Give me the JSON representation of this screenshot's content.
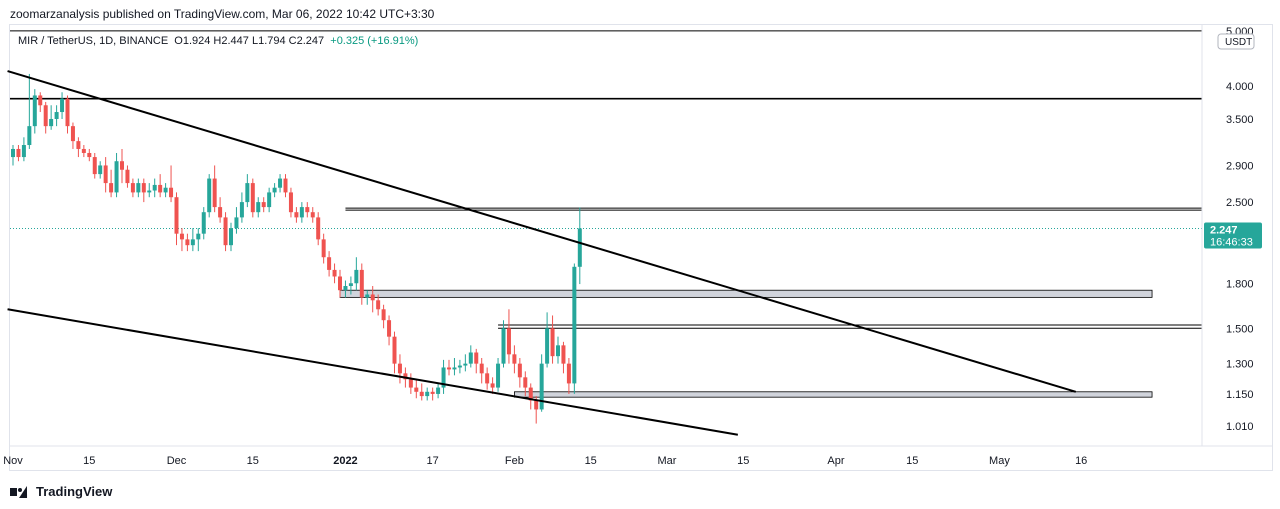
{
  "header": {
    "publisher": "zoomarzanalysis published on TradingView.com, Mar 06, 2022 10:42 UTC+3:30",
    "symbol_line": "MIR / TetherUS, 1D, BINANCE",
    "ohlc": "O1.924  H2.447  L1.794  C2.247",
    "change": "+0.325 (+16.91%)"
  },
  "footer": {
    "brand": "TradingView"
  },
  "colors": {
    "up": "#26a69a",
    "down": "#ef5350",
    "price_tag": "#26a69a",
    "zone": "#d1d4dc",
    "line": "#000000"
  },
  "chart_data": {
    "type": "candlestick",
    "title": "MIR / TetherUS, 1D, BINANCE",
    "y_scale": "log",
    "y_unit": "USDT",
    "y_ticks": [
      5.0,
      4.0,
      3.5,
      2.9,
      2.5,
      1.8,
      1.5,
      1.3,
      1.15,
      1.01
    ],
    "y_tick_labels": [
      "5.000",
      "4.000",
      "3.500",
      "2.900",
      "2.500",
      "1.800",
      "1.500",
      "1.300",
      "1.150",
      "1.010"
    ],
    "x_ticks": [
      {
        "label": "Nov",
        "date": "2021-11-01",
        "bold": false
      },
      {
        "label": "15",
        "date": "2021-11-15",
        "bold": false
      },
      {
        "label": "Dec",
        "date": "2021-12-01",
        "bold": false
      },
      {
        "label": "15",
        "date": "2021-12-15",
        "bold": false
      },
      {
        "label": "2022",
        "date": "2022-01-01",
        "bold": true
      },
      {
        "label": "17",
        "date": "2022-01-17",
        "bold": false
      },
      {
        "label": "Feb",
        "date": "2022-02-01",
        "bold": false
      },
      {
        "label": "15",
        "date": "2022-02-15",
        "bold": false
      },
      {
        "label": "Mar",
        "date": "2022-03-01",
        "bold": false
      },
      {
        "label": "15",
        "date": "2022-03-15",
        "bold": false
      },
      {
        "label": "Apr",
        "date": "2022-04-01",
        "bold": false
      },
      {
        "label": "15",
        "date": "2022-04-15",
        "bold": false
      },
      {
        "label": "May",
        "date": "2022-05-01",
        "bold": false
      },
      {
        "label": "16",
        "date": "2022-05-16",
        "bold": false
      }
    ],
    "first_date": "2021-11-01",
    "candles": [
      [
        3.0,
        3.1,
        2.9,
        3.15
      ],
      [
        3.1,
        3.0,
        2.95,
        3.15
      ],
      [
        3.0,
        3.15,
        2.95,
        3.25
      ],
      [
        3.15,
        3.4,
        3.1,
        4.2
      ],
      [
        3.4,
        3.85,
        3.3,
        3.95
      ],
      [
        3.85,
        3.7,
        3.6,
        3.9
      ],
      [
        3.7,
        3.4,
        3.3,
        3.75
      ],
      [
        3.4,
        3.5,
        3.35,
        3.7
      ],
      [
        3.5,
        3.6,
        3.4,
        3.7
      ],
      [
        3.6,
        3.8,
        3.5,
        3.9
      ],
      [
        3.8,
        3.4,
        3.3,
        3.85
      ],
      [
        3.4,
        3.2,
        3.1,
        3.45
      ],
      [
        3.2,
        3.1,
        3.0,
        3.25
      ],
      [
        3.1,
        3.05,
        3.0,
        3.15
      ],
      [
        3.05,
        3.0,
        2.95,
        3.1
      ],
      [
        3.0,
        2.8,
        2.75,
        3.05
      ],
      [
        2.8,
        2.9,
        2.75,
        2.95
      ],
      [
        2.9,
        2.7,
        2.6,
        3.0
      ],
      [
        2.7,
        2.6,
        2.55,
        2.85
      ],
      [
        2.6,
        2.95,
        2.55,
        3.05
      ],
      [
        2.95,
        2.85,
        2.7,
        3.1
      ],
      [
        2.85,
        2.7,
        2.65,
        2.9
      ],
      [
        2.7,
        2.6,
        2.55,
        2.75
      ],
      [
        2.6,
        2.7,
        2.55,
        2.75
      ],
      [
        2.7,
        2.6,
        2.5,
        2.75
      ],
      [
        2.6,
        2.62,
        2.55,
        2.7
      ],
      [
        2.62,
        2.68,
        2.55,
        2.75
      ],
      [
        2.68,
        2.6,
        2.55,
        2.8
      ],
      [
        2.6,
        2.65,
        2.55,
        2.7
      ],
      [
        2.65,
        2.55,
        2.5,
        2.9
      ],
      [
        2.55,
        2.2,
        2.1,
        2.6
      ],
      [
        2.2,
        2.15,
        2.05,
        2.25
      ],
      [
        2.15,
        2.1,
        2.05,
        2.2
      ],
      [
        2.1,
        2.15,
        2.05,
        2.25
      ],
      [
        2.15,
        2.2,
        2.05,
        2.25
      ],
      [
        2.2,
        2.4,
        2.15,
        2.45
      ],
      [
        2.4,
        2.75,
        2.35,
        2.8
      ],
      [
        2.75,
        2.45,
        2.4,
        2.9
      ],
      [
        2.45,
        2.35,
        2.3,
        2.55
      ],
      [
        2.35,
        2.1,
        2.05,
        2.4
      ],
      [
        2.1,
        2.25,
        2.05,
        2.3
      ],
      [
        2.25,
        2.35,
        2.2,
        2.45
      ],
      [
        2.35,
        2.5,
        2.3,
        2.6
      ],
      [
        2.5,
        2.7,
        2.45,
        2.8
      ],
      [
        2.7,
        2.4,
        2.35,
        2.75
      ],
      [
        2.4,
        2.5,
        2.35,
        2.55
      ],
      [
        2.5,
        2.45,
        2.4,
        2.55
      ],
      [
        2.45,
        2.6,
        2.4,
        2.65
      ],
      [
        2.6,
        2.65,
        2.55,
        2.7
      ],
      [
        2.65,
        2.75,
        2.6,
        2.8
      ],
      [
        2.75,
        2.6,
        2.55,
        2.8
      ],
      [
        2.6,
        2.4,
        2.35,
        2.65
      ],
      [
        2.4,
        2.35,
        2.3,
        2.45
      ],
      [
        2.35,
        2.45,
        2.3,
        2.5
      ],
      [
        2.45,
        2.4,
        2.35,
        2.5
      ],
      [
        2.4,
        2.35,
        2.3,
        2.45
      ],
      [
        2.35,
        2.15,
        2.1,
        2.4
      ],
      [
        2.15,
        2.0,
        1.95,
        2.2
      ],
      [
        2.0,
        1.9,
        1.85,
        2.05
      ],
      [
        1.9,
        1.85,
        1.8,
        1.95
      ],
      [
        1.85,
        1.75,
        1.7,
        1.9
      ],
      [
        1.75,
        1.78,
        1.7,
        1.82
      ],
      [
        1.78,
        1.8,
        1.72,
        1.85
      ],
      [
        1.8,
        1.9,
        1.75,
        2.0
      ],
      [
        1.9,
        1.7,
        1.65,
        1.95
      ],
      [
        1.7,
        1.72,
        1.65,
        1.75
      ],
      [
        1.72,
        1.68,
        1.6,
        1.78
      ],
      [
        1.68,
        1.62,
        1.58,
        1.72
      ],
      [
        1.62,
        1.55,
        1.5,
        1.65
      ],
      [
        1.55,
        1.45,
        1.4,
        1.58
      ],
      [
        1.45,
        1.3,
        1.25,
        1.48
      ],
      [
        1.3,
        1.25,
        1.2,
        1.35
      ],
      [
        1.25,
        1.22,
        1.18,
        1.28
      ],
      [
        1.22,
        1.18,
        1.15,
        1.25
      ],
      [
        1.18,
        1.16,
        1.13,
        1.22
      ],
      [
        1.16,
        1.14,
        1.12,
        1.2
      ],
      [
        1.14,
        1.16,
        1.12,
        1.18
      ],
      [
        1.16,
        1.15,
        1.12,
        1.18
      ],
      [
        1.15,
        1.18,
        1.13,
        1.2
      ],
      [
        1.18,
        1.28,
        1.15,
        1.32
      ],
      [
        1.28,
        1.27,
        1.24,
        1.32
      ],
      [
        1.27,
        1.28,
        1.24,
        1.33
      ],
      [
        1.28,
        1.29,
        1.25,
        1.32
      ],
      [
        1.29,
        1.3,
        1.26,
        1.35
      ],
      [
        1.3,
        1.36,
        1.28,
        1.4
      ],
      [
        1.36,
        1.3,
        1.25,
        1.38
      ],
      [
        1.3,
        1.25,
        1.2,
        1.33
      ],
      [
        1.25,
        1.2,
        1.17,
        1.28
      ],
      [
        1.2,
        1.18,
        1.15,
        1.23
      ],
      [
        1.18,
        1.3,
        1.16,
        1.33
      ],
      [
        1.3,
        1.5,
        1.28,
        1.55
      ],
      [
        1.5,
        1.35,
        1.3,
        1.62
      ],
      [
        1.35,
        1.3,
        1.25,
        1.4
      ],
      [
        1.3,
        1.23,
        1.18,
        1.33
      ],
      [
        1.23,
        1.18,
        1.14,
        1.26
      ],
      [
        1.18,
        1.12,
        1.08,
        1.2
      ],
      [
        1.12,
        1.08,
        1.02,
        1.14
      ],
      [
        1.08,
        1.3,
        1.07,
        1.35
      ],
      [
        1.3,
        1.5,
        1.28,
        1.6
      ],
      [
        1.5,
        1.34,
        1.3,
        1.58
      ],
      [
        1.34,
        1.4,
        1.3,
        1.45
      ],
      [
        1.4,
        1.3,
        1.25,
        1.42
      ],
      [
        1.3,
        1.2,
        1.15,
        1.33
      ],
      [
        1.2,
        1.924,
        1.15,
        1.95
      ],
      [
        1.924,
        2.247,
        1.794,
        2.447
      ]
    ],
    "horizontal_levels": [
      5.0,
      3.8,
      2.44,
      2.42,
      1.52,
      1.5
    ],
    "zones": [
      {
        "from_date": "2021-12-31",
        "to_date": "2022-05-29",
        "low": 1.7,
        "high": 1.75
      },
      {
        "from_date": "2022-02-01",
        "to_date": "2022-05-29",
        "low": 1.135,
        "high": 1.16
      }
    ],
    "trendlines": [
      {
        "p1": [
          "2021-10-31",
          4.25
        ],
        "p2": [
          "2022-05-15",
          1.16
        ]
      },
      {
        "p1": [
          "2021-10-31",
          1.62
        ],
        "p2": [
          "2022-03-14",
          0.975
        ]
      }
    ],
    "last_price_label": "2.247",
    "countdown": "16:46:33",
    "currency_label": "USDT"
  }
}
